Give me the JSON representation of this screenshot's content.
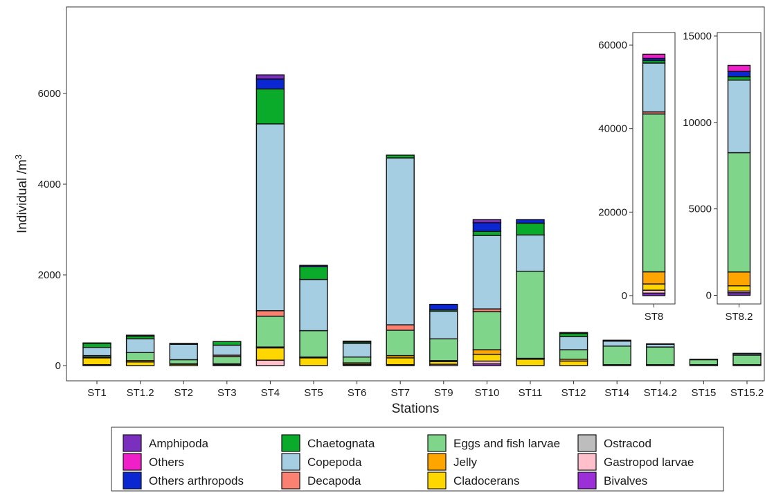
{
  "chart_data": {
    "type": "bar",
    "stacked": true,
    "xlabel": "Stations",
    "ylabel": "Individual /",
    "ylabel_unit": "m",
    "ylabel_unit_exp": "3",
    "ylim": [
      0,
      7700
    ],
    "y_ticks": [
      0,
      2000,
      4000,
      6000
    ],
    "categories": [
      "ST1",
      "ST1.2",
      "ST2",
      "ST3",
      "ST4",
      "ST5",
      "ST6",
      "ST7",
      "ST9",
      "ST10",
      "ST11",
      "ST12",
      "ST14",
      "ST14.2",
      "ST15",
      "ST15.2"
    ],
    "series": [
      {
        "name": "Bivalves",
        "color": "#9b30d9",
        "values": [
          0,
          0,
          0,
          0,
          0,
          0,
          0,
          0,
          0,
          40,
          0,
          0,
          0,
          0,
          0,
          0
        ]
      },
      {
        "name": "Gastropod larvae",
        "color": "#ffc0cb",
        "values": [
          20,
          0,
          0,
          0,
          120,
          0,
          20,
          20,
          30,
          60,
          0,
          0,
          0,
          0,
          0,
          0
        ]
      },
      {
        "name": "Ostracod",
        "color": "#bdbdbd",
        "values": [
          0,
          0,
          0,
          0,
          0,
          0,
          0,
          0,
          0,
          0,
          0,
          0,
          0,
          0,
          0,
          0
        ]
      },
      {
        "name": "Cladocerans",
        "color": "#ffd700",
        "values": [
          150,
          80,
          30,
          20,
          270,
          170,
          30,
          150,
          60,
          150,
          140,
          100,
          20,
          20,
          20,
          20
        ]
      },
      {
        "name": "Jelly",
        "color": "#ffa500",
        "values": [
          20,
          30,
          10,
          20,
          20,
          20,
          10,
          50,
          20,
          100,
          20,
          40,
          0,
          0,
          0,
          0
        ]
      },
      {
        "name": "Eggs and fish larvae",
        "color": "#7fd68a",
        "values": [
          30,
          180,
          90,
          160,
          680,
          580,
          130,
          560,
          480,
          840,
          1920,
          210,
          410,
          390,
          110,
          210
        ]
      },
      {
        "name": "Decapoda",
        "color": "#fa8072",
        "values": [
          0,
          0,
          0,
          30,
          120,
          0,
          0,
          120,
          0,
          60,
          0,
          0,
          0,
          0,
          0,
          0
        ]
      },
      {
        "name": "Copepoda",
        "color": "#a6cee3",
        "values": [
          180,
          300,
          340,
          220,
          4120,
          1130,
          300,
          3680,
          610,
          1620,
          800,
          290,
          110,
          60,
          10,
          30
        ]
      },
      {
        "name": "Chaetognata",
        "color": "#0aab2b",
        "values": [
          90,
          60,
          20,
          80,
          770,
          280,
          30,
          60,
          30,
          90,
          260,
          70,
          20,
          10,
          0,
          10
        ]
      },
      {
        "name": "Others arthropods",
        "color": "#0a27d1",
        "values": [
          0,
          20,
          0,
          0,
          220,
          30,
          20,
          0,
          120,
          190,
          80,
          20,
          0,
          0,
          0,
          0
        ]
      },
      {
        "name": "Others",
        "color": "#f020c8",
        "values": [
          0,
          0,
          0,
          0,
          0,
          0,
          0,
          0,
          0,
          0,
          0,
          0,
          0,
          0,
          0,
          0
        ]
      },
      {
        "name": "Amphipoda",
        "color": "#7b2fbf",
        "values": [
          10,
          0,
          0,
          0,
          90,
          0,
          0,
          0,
          0,
          70,
          0,
          0,
          0,
          0,
          0,
          0
        ]
      }
    ],
    "insets": [
      {
        "category": "ST8",
        "y_ticks": [
          0,
          20000,
          40000,
          60000
        ],
        "ylim": [
          -2000,
          63000
        ],
        "segments": [
          {
            "name": "Amphipoda",
            "value": 600
          },
          {
            "name": "Gastropod larvae",
            "value": 700
          },
          {
            "name": "Cladocerans",
            "value": 1500
          },
          {
            "name": "Jelly",
            "value": 2900
          },
          {
            "name": "Eggs and fish larvae",
            "value": 37800
          },
          {
            "name": "Decapoda",
            "value": 500
          },
          {
            "name": "Copepoda",
            "value": 11700
          },
          {
            "name": "Chaetognata",
            "value": 600
          },
          {
            "name": "Others arthropods",
            "value": 500
          },
          {
            "name": "Others",
            "value": 1000
          }
        ]
      },
      {
        "category": "ST8.2",
        "y_ticks": [
          0,
          5000,
          10000,
          15000
        ],
        "ylim": [
          -500,
          15200
        ],
        "segments": [
          {
            "name": "Amphipoda",
            "value": 150
          },
          {
            "name": "Gastropod larvae",
            "value": 100
          },
          {
            "name": "Cladocerans",
            "value": 300
          },
          {
            "name": "Jelly",
            "value": 800
          },
          {
            "name": "Eggs and fish larvae",
            "value": 6900
          },
          {
            "name": "Copepoda",
            "value": 4200
          },
          {
            "name": "Chaetognata",
            "value": 200
          },
          {
            "name": "Others arthropods",
            "value": 300
          },
          {
            "name": "Others",
            "value": 350
          }
        ]
      }
    ],
    "legend": {
      "placement": "bottom",
      "columns": [
        [
          "Amphipoda",
          "Others",
          "Others arthropods"
        ],
        [
          "Chaetognata",
          "Copepoda",
          "Decapoda"
        ],
        [
          "Eggs and fish larvae",
          "Jelly",
          "Cladocerans"
        ],
        [
          "Ostracod",
          "Gastropod larvae",
          "Bivalves"
        ]
      ]
    }
  }
}
